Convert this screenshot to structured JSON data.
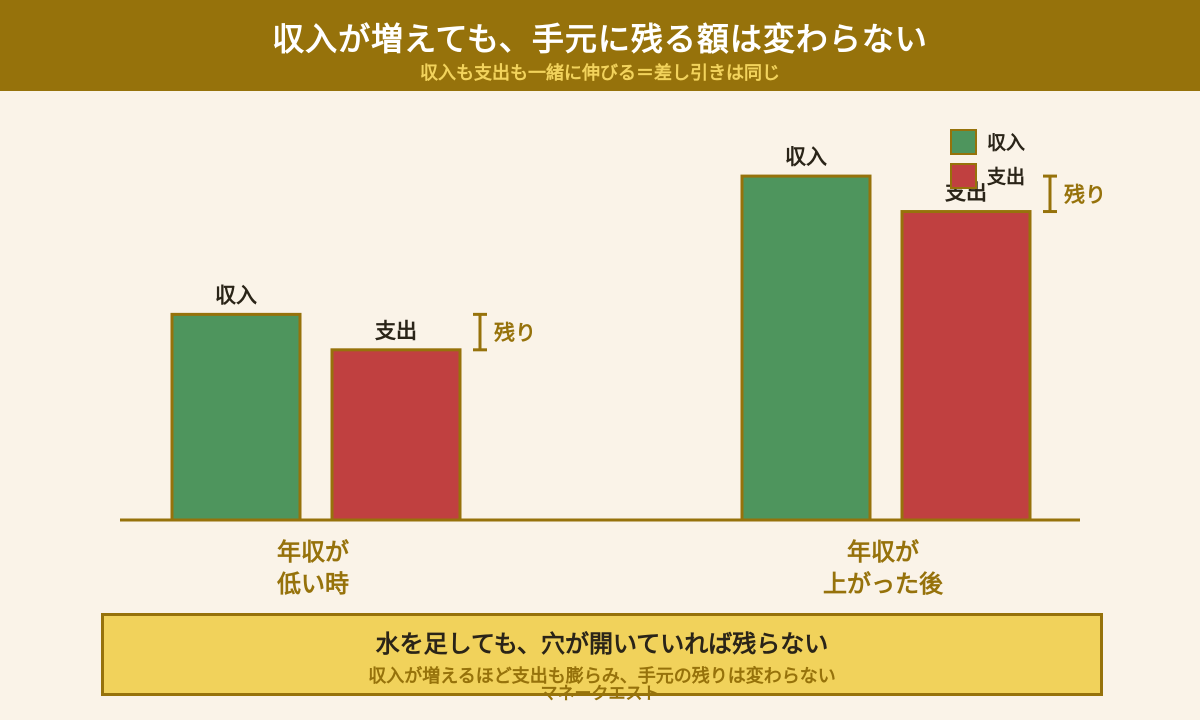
{
  "header": {
    "title": "収入が増えても、手元に残る額は変わらない",
    "subtitle": "収入も支出も一緒に伸びる＝差し引きは同じ"
  },
  "chart_data": {
    "type": "bar",
    "categories": [
      "年収が\n低い時",
      "年収が\n上がった後"
    ],
    "series": [
      {
        "name": "収入",
        "label": "収入",
        "values": [
          58,
          97
        ],
        "color": "#4e955d"
      },
      {
        "name": "支出",
        "label": "支出",
        "values": [
          48,
          87
        ],
        "color": "#c04040"
      }
    ],
    "remainder_label": "残り",
    "ylim": [
      0,
      110
    ],
    "legend": "top-right",
    "grid": false,
    "colors": {
      "bar_border": "#96720b",
      "baseline": "#96720b",
      "remainder": "#96720b",
      "category_label": "#96720b"
    }
  },
  "footer": {
    "main": "水を足しても、穴が開いていれば残らない",
    "sub": "収入が増えるほど支出も膨らみ、手元の残りは変わらない"
  },
  "credit": "マネークエスト"
}
